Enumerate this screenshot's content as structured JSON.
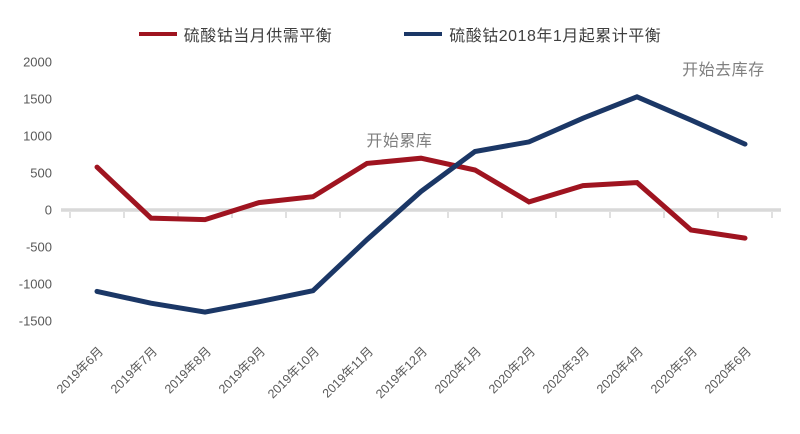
{
  "chart_data": {
    "type": "line",
    "title": "",
    "categories": [
      "2019年6月",
      "2019年7月",
      "2019年8月",
      "2019年9月",
      "2019年10月",
      "2019年11月",
      "2019年12月",
      "2020年1月",
      "2020年2月",
      "2020年3月",
      "2020年4月",
      "2020年5月",
      "2020年6月"
    ],
    "series": [
      {
        "name": "硫酸钴当月供需平衡",
        "color": "#9f1420",
        "values": [
          580,
          -110,
          -130,
          100,
          180,
          630,
          700,
          540,
          110,
          330,
          370,
          -270,
          -380
        ]
      },
      {
        "name": "硫酸钴2018年1月起累计平衡",
        "color": "#1b3766",
        "values": [
          -1100,
          -1260,
          -1380,
          -1240,
          -1090,
          -400,
          250,
          790,
          920,
          1240,
          1530,
          1215,
          890
        ]
      }
    ],
    "yticks": [
      2000,
      1500,
      1000,
      500,
      0,
      -500,
      -1000,
      -1500
    ],
    "ylim": [
      -1500,
      2000
    ],
    "grid": false,
    "legend_position": "top-center",
    "axis_color": "#d9d9d9",
    "label_color": "#595959",
    "annotation_color": "#7f7f7f",
    "annotations": [
      {
        "text": "开始累库",
        "index": 5.6,
        "value": 930
      },
      {
        "text": "开始去库存",
        "index": 11.6,
        "value": 1890
      }
    ]
  }
}
